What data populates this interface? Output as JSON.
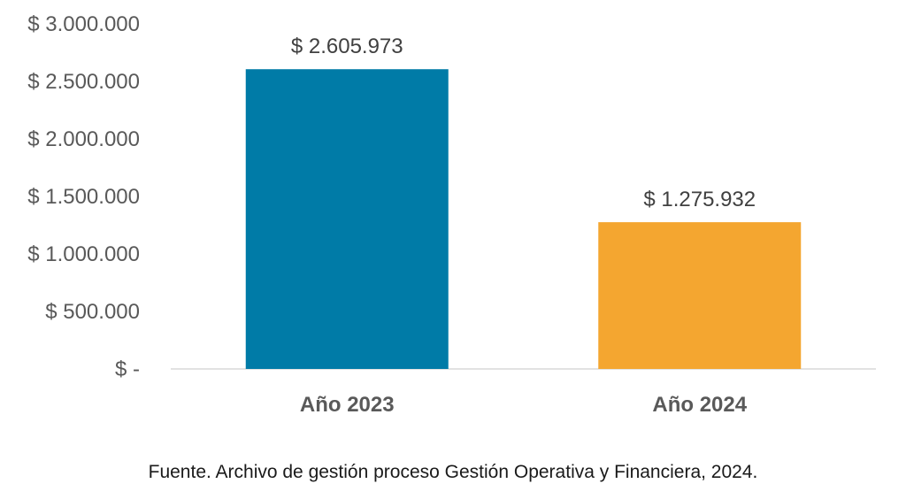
{
  "chart_data": {
    "type": "bar",
    "categories": [
      "Año 2023",
      "Año 2024"
    ],
    "values": [
      2605973,
      1275932
    ],
    "data_labels": [
      "$ 2.605.973",
      "$ 1.275.932"
    ],
    "bar_colors": [
      "#007BA7",
      "#F4A630"
    ],
    "ylim": [
      0,
      3000000
    ],
    "yticks": [
      0,
      500000,
      1000000,
      1500000,
      2000000,
      2500000,
      3000000
    ],
    "ytick_labels": [
      "$ -",
      "$ 500.000",
      "$ 1.000.000",
      "$ 1.500.000",
      "$ 2.000.000",
      "$ 2.500.000",
      "$ 3.000.000"
    ],
    "title": "",
    "xlabel": "",
    "ylabel": "",
    "grid": false,
    "legend": false
  },
  "source_note": "Fuente. Archivo de gestión proceso Gestión Operativa y Financiera, 2024."
}
